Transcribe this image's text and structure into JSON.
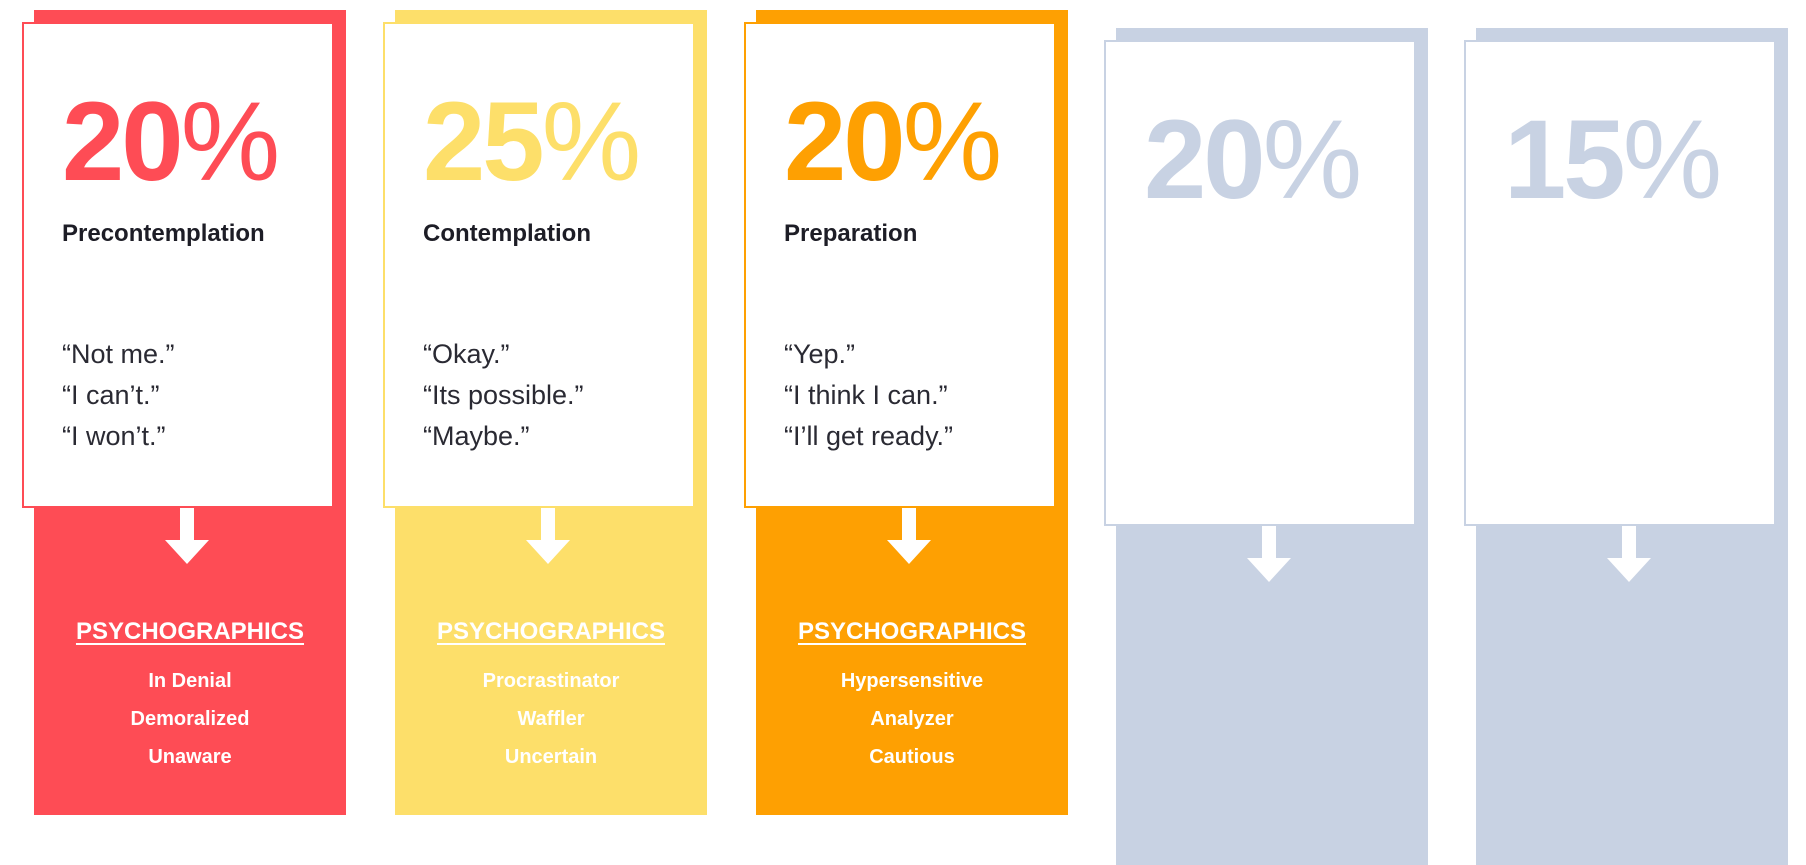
{
  "stages": [
    {
      "id": "precontemplation",
      "percent_value": "20",
      "percent_sign": "%",
      "title": "Precontemplation",
      "quotes": [
        "“Not me.”",
        "“I can’t.”",
        "“I won’t.”"
      ],
      "psychographics_heading": "PSYCHOGRAPHICS",
      "psychographics": [
        "In Denial",
        "Demoralized",
        "Unaware"
      ],
      "color": "#fe4c55",
      "active": true
    },
    {
      "id": "contemplation",
      "percent_value": "25",
      "percent_sign": "%",
      "title": "Contemplation",
      "quotes": [
        "“Okay.”",
        "“Its possible.”",
        "“Maybe.”"
      ],
      "psychographics_heading": "PSYCHOGRAPHICS",
      "psychographics": [
        "Procrastinator",
        "Waffler",
        "Uncertain"
      ],
      "color": "#fddf6a",
      "active": true
    },
    {
      "id": "preparation",
      "percent_value": "20",
      "percent_sign": "%",
      "title": "Preparation",
      "quotes": [
        "“Yep.”",
        "“I think I can.”",
        "“I’ll get ready.”"
      ],
      "psychographics_heading": "PSYCHOGRAPHICS",
      "psychographics": [
        "Hypersensitive",
        "Analyzer",
        "Cautious"
      ],
      "color": "#fea002",
      "active": true
    },
    {
      "id": "stage-4",
      "percent_value": "20",
      "percent_sign": "%",
      "color": "#c8d2e3",
      "active": false
    },
    {
      "id": "stage-5",
      "percent_value": "15",
      "percent_sign": "%",
      "color": "#c8d2e3",
      "active": false
    }
  ]
}
